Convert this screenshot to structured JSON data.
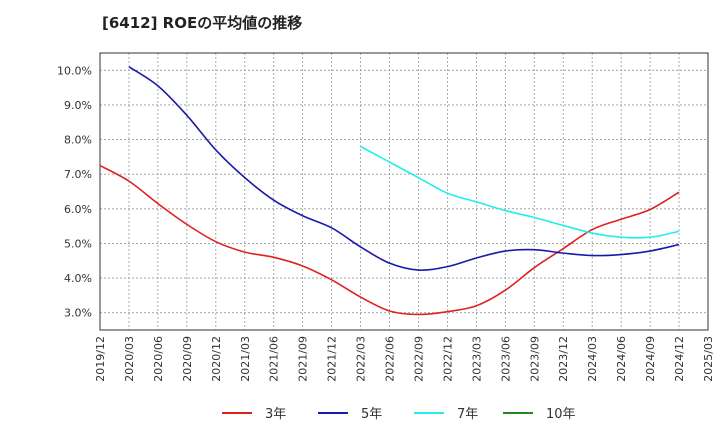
{
  "chart_data": {
    "type": "line",
    "title": "[6412]  ROEの平均値の推移",
    "x_tick_labels": [
      "2019/12",
      "2020/03",
      "2020/06",
      "2020/09",
      "2020/12",
      "2021/03",
      "2021/06",
      "2021/09",
      "2021/12",
      "2022/03",
      "2022/06",
      "2022/09",
      "2022/12",
      "2023/03",
      "2023/06",
      "2023/09",
      "2023/12",
      "2024/03",
      "2024/06",
      "2024/09",
      "2024/12",
      "2025/03"
    ],
    "y_tick_labels": [
      "3.0%",
      "4.0%",
      "5.0%",
      "6.0%",
      "7.0%",
      "8.0%",
      "9.0%",
      "10.0%"
    ],
    "ylim": [
      2.5,
      10.5
    ],
    "grid": true,
    "legend_position": "bottom",
    "series": [
      {
        "name": "3年",
        "color": "#dd2222",
        "x": [
          "2019/12",
          "2020/03",
          "2020/06",
          "2020/09",
          "2020/12",
          "2021/03",
          "2021/06",
          "2021/09",
          "2021/12",
          "2022/03",
          "2022/06",
          "2022/09",
          "2022/12",
          "2023/03",
          "2023/06",
          "2023/09",
          "2023/12",
          "2024/03",
          "2024/06",
          "2024/09",
          "2024/12"
        ],
        "values": [
          7.25,
          6.8,
          6.15,
          5.55,
          5.05,
          4.75,
          4.6,
          4.35,
          3.95,
          3.45,
          3.05,
          2.95,
          3.03,
          3.2,
          3.65,
          4.3,
          4.85,
          5.4,
          5.7,
          5.98,
          6.48
        ]
      },
      {
        "name": "5年",
        "color": "#1a1aaa",
        "x": [
          "2020/03",
          "2020/06",
          "2020/09",
          "2020/12",
          "2021/03",
          "2021/06",
          "2021/09",
          "2021/12",
          "2022/03",
          "2022/06",
          "2022/09",
          "2022/12",
          "2023/03",
          "2023/06",
          "2023/09",
          "2023/12",
          "2024/03",
          "2024/06",
          "2024/09",
          "2024/12"
        ],
        "values": [
          10.1,
          9.55,
          8.7,
          7.7,
          6.9,
          6.25,
          5.8,
          5.45,
          4.9,
          4.43,
          4.23,
          4.33,
          4.58,
          4.78,
          4.82,
          4.72,
          4.65,
          4.68,
          4.78,
          4.97
        ]
      },
      {
        "name": "7年",
        "color": "#22eeee",
        "x": [
          "2022/03",
          "2022/06",
          "2022/09",
          "2022/12",
          "2023/03",
          "2023/06",
          "2023/09",
          "2023/12",
          "2024/03",
          "2024/06",
          "2024/09",
          "2024/12"
        ],
        "values": [
          7.8,
          7.35,
          6.9,
          6.45,
          6.2,
          5.95,
          5.75,
          5.52,
          5.3,
          5.18,
          5.18,
          5.35
        ]
      },
      {
        "name": "10年",
        "color": "#228822",
        "x": [],
        "values": []
      }
    ]
  }
}
